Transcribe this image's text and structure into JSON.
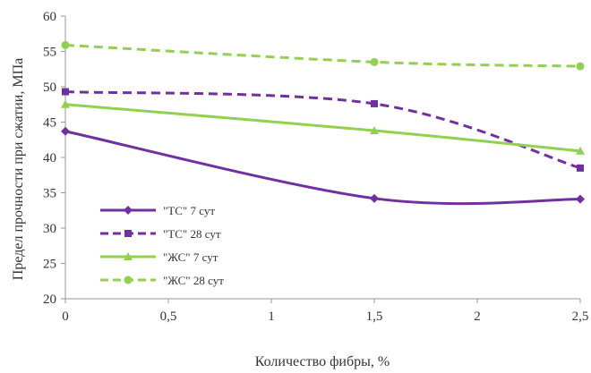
{
  "chart_data": {
    "type": "line",
    "title": "",
    "xlabel": "Количество фибры, %",
    "ylabel": "Предел прочности при сжатии, МПа",
    "xlim": [
      0,
      2.5
    ],
    "ylim": [
      20,
      60
    ],
    "x_ticks": [
      0,
      0.5,
      1,
      1.5,
      2,
      2.5
    ],
    "x_tick_labels": [
      "0",
      "0,5",
      "1",
      "1,5",
      "2",
      "2,5"
    ],
    "y_ticks": [
      20,
      25,
      30,
      35,
      40,
      45,
      50,
      55,
      60
    ],
    "y_tick_labels": [
      "20",
      "25",
      "30",
      "35",
      "40",
      "45",
      "50",
      "55",
      "60"
    ],
    "grid": "none",
    "legend_position": "bottom-left",
    "x": [
      0,
      1.5,
      2.5
    ],
    "series": [
      {
        "name": "\"ТС\" 7 сут",
        "values": [
          43.7,
          34.2,
          34.1
        ],
        "color": "#7030a0",
        "dashed": false,
        "marker": "diamond"
      },
      {
        "name": "\"ТС\" 28 сут",
        "values": [
          49.3,
          47.6,
          38.5
        ],
        "color": "#7030a0",
        "dashed": true,
        "marker": "square"
      },
      {
        "name": "\"ЖС\" 7 сут",
        "values": [
          47.5,
          43.8,
          40.9
        ],
        "color": "#92d050",
        "dashed": false,
        "marker": "triangle"
      },
      {
        "name": "\"ЖС\" 28 сут",
        "values": [
          55.9,
          53.5,
          52.9
        ],
        "color": "#92d050",
        "dashed": true,
        "marker": "circle"
      }
    ]
  }
}
